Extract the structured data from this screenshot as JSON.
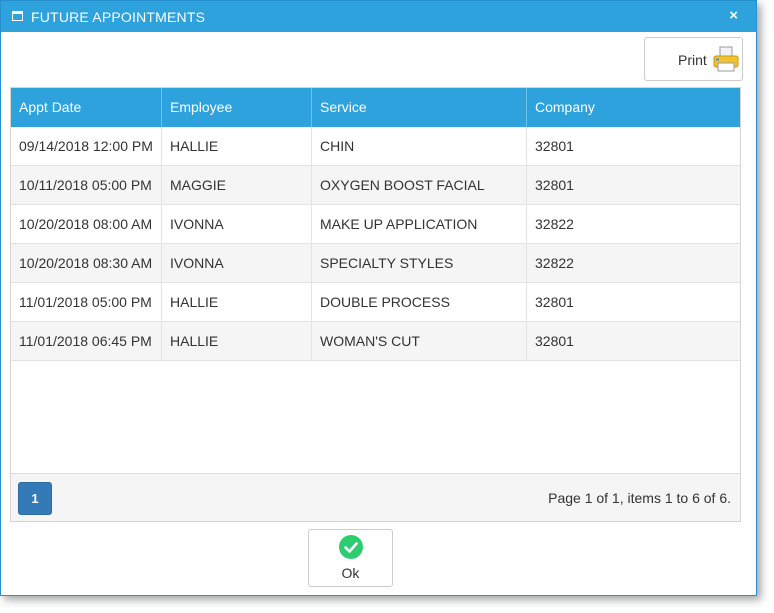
{
  "dialog": {
    "title": "FUTURE APPOINTMENTS",
    "close_symbol": "×",
    "title_icon": "window-icon",
    "accent_color": "#2da2dd"
  },
  "toolbar": {
    "print_label": "Print",
    "print_icon": "printer-icon"
  },
  "table": {
    "headers": [
      "Appt Date",
      "Employee",
      "Service",
      "Company"
    ],
    "rows": [
      [
        "09/14/2018 12:00 PM",
        "HALLIE",
        "CHIN",
        "32801"
      ],
      [
        "10/11/2018 05:00 PM",
        "MAGGIE",
        "OXYGEN BOOST FACIAL",
        "32801"
      ],
      [
        "10/20/2018 08:00 AM",
        "IVONNA",
        "MAKE UP APPLICATION",
        "32822"
      ],
      [
        "10/20/2018 08:30 AM",
        "IVONNA",
        "SPECIALTY STYLES",
        "32822"
      ],
      [
        "11/01/2018 05:00 PM",
        "HALLIE",
        "DOUBLE PROCESS",
        "32801"
      ],
      [
        "11/01/2018 06:45 PM",
        "HALLIE",
        "WOMAN'S CUT",
        "32801"
      ]
    ]
  },
  "pager": {
    "current_page": "1",
    "info": "Page 1 of 1, items 1 to 6 of 6."
  },
  "footer": {
    "ok_label": "Ok",
    "ok_icon": "check-circle-icon"
  }
}
